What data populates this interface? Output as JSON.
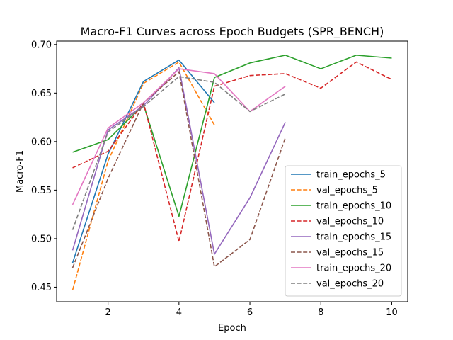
{
  "chart_data": {
    "type": "line",
    "title": "Macro-F1 Curves across Epoch Budgets (SPR_BENCH)",
    "xlabel": "Epoch",
    "ylabel": "Macro-F1",
    "xlim": [
      0.55,
      10.45
    ],
    "ylim": [
      0.435,
      0.7035
    ],
    "xticks": [
      2,
      4,
      6,
      8,
      10
    ],
    "yticks": [
      0.45,
      0.5,
      0.55,
      0.6,
      0.65,
      0.7
    ],
    "ytick_labels": [
      "0.45",
      "0.50",
      "0.55",
      "0.60",
      "0.65",
      "0.70"
    ],
    "grid": false,
    "legend_position": "lower-right",
    "series": [
      {
        "name": "train_epochs_5",
        "color": "#1f77b4",
        "dash": "solid",
        "x": [
          1,
          2,
          3,
          4,
          5
        ],
        "y": [
          0.475,
          0.587,
          0.662,
          0.684,
          0.64
        ]
      },
      {
        "name": "val_epochs_5",
        "color": "#ff7f0e",
        "dash": "dashed",
        "x": [
          1,
          2,
          3,
          4,
          5
        ],
        "y": [
          0.447,
          0.58,
          0.66,
          0.682,
          0.617
        ]
      },
      {
        "name": "train_epochs_10",
        "color": "#2ca02c",
        "dash": "solid",
        "x": [
          1,
          2,
          3,
          4,
          5,
          6,
          7,
          8,
          9,
          10
        ],
        "y": [
          0.589,
          0.602,
          0.638,
          0.523,
          0.666,
          0.681,
          0.689,
          0.675,
          0.689,
          0.686
        ]
      },
      {
        "name": "val_epochs_10",
        "color": "#d62728",
        "dash": "dashed",
        "x": [
          1,
          2,
          3,
          4,
          5,
          6,
          7,
          8,
          9,
          10
        ],
        "y": [
          0.573,
          0.59,
          0.64,
          0.497,
          0.657,
          0.668,
          0.67,
          0.655,
          0.682,
          0.664
        ]
      },
      {
        "name": "train_epochs_15",
        "color": "#9467bd",
        "dash": "solid",
        "x": [
          1,
          2,
          3,
          4,
          5,
          6,
          7
        ],
        "y": [
          0.488,
          0.612,
          0.637,
          0.676,
          0.484,
          0.542,
          0.62
        ]
      },
      {
        "name": "val_epochs_15",
        "color": "#8c564b",
        "dash": "dashed",
        "x": [
          1,
          2,
          3,
          4,
          5,
          6,
          7
        ],
        "y": [
          0.47,
          0.562,
          0.64,
          0.672,
          0.471,
          0.499,
          0.604
        ]
      },
      {
        "name": "train_epochs_20",
        "color": "#e377c2",
        "dash": "solid",
        "x": [
          1,
          2,
          3,
          4,
          5,
          6,
          7
        ],
        "y": [
          0.535,
          0.614,
          0.64,
          0.675,
          0.67,
          0.631,
          0.657
        ]
      },
      {
        "name": "val_epochs_20",
        "color": "#7f7f7f",
        "dash": "dashed",
        "x": [
          1,
          2,
          3,
          4,
          5,
          6,
          7
        ],
        "y": [
          0.509,
          0.61,
          0.636,
          0.667,
          0.661,
          0.631,
          0.649
        ]
      }
    ]
  }
}
